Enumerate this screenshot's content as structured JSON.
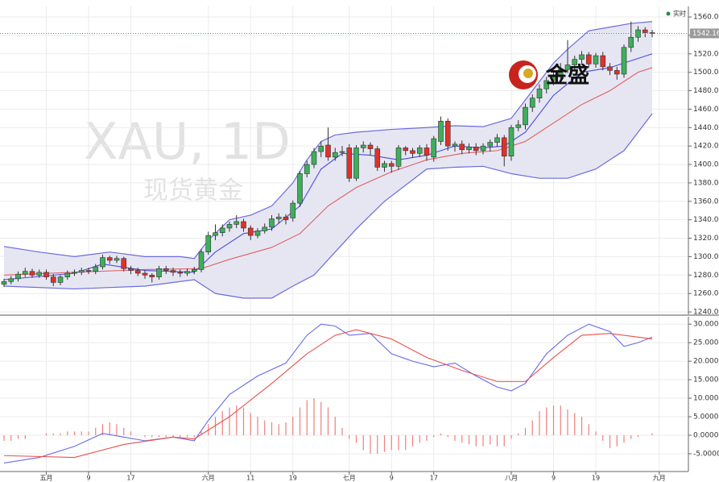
{
  "watermark": [
    "XAU, 1D",
    "现货黄金"
  ],
  "logo": "金盛",
  "legend_label": "实时",
  "chart_data": [
    {
      "type": "candlestick",
      "up_color": "#3fae5a",
      "down_color": "#e0312a",
      "grid": true,
      "ylim": [
        1237.4,
        1571.4
      ],
      "yticks": [
        {
          "value": 1240,
          "label": "1240.00"
        },
        {
          "value": 1260,
          "label": "1260.00"
        },
        {
          "value": 1280,
          "label": "1280.00"
        },
        {
          "value": 1300,
          "label": "1300.00"
        },
        {
          "value": 1320,
          "label": "1320.00"
        },
        {
          "value": 1340,
          "label": "1340.00"
        },
        {
          "value": 1360,
          "label": "1360.00"
        },
        {
          "value": 1380,
          "label": "1380.00"
        },
        {
          "value": 1400,
          "label": "1400.00"
        },
        {
          "value": 1420,
          "label": "1420.00"
        },
        {
          "value": 1440,
          "label": "1440.00"
        },
        {
          "value": 1460,
          "label": "1460.00"
        },
        {
          "value": 1480,
          "label": "1480.00"
        },
        {
          "value": 1500,
          "label": "1500.00"
        },
        {
          "value": 1520,
          "label": "1520.00"
        },
        {
          "value": 1540,
          "label": "1540.00"
        },
        {
          "value": 1560,
          "label": "1560.00"
        }
      ],
      "open": [
        1270,
        1273,
        1276,
        1281,
        1284,
        1280,
        1283,
        1278,
        1272,
        1278,
        1282,
        1283,
        1285,
        1284,
        1289,
        1299,
        1296,
        1298,
        1287,
        1285,
        1282,
        1280,
        1278,
        1287,
        1285,
        1283,
        1282,
        1284,
        1286,
        1305,
        1323,
        1326,
        1331,
        1335,
        1338,
        1331,
        1323,
        1328,
        1332,
        1341,
        1343,
        1342,
        1358,
        1390,
        1400,
        1414,
        1421,
        1408,
        1413,
        1418,
        1385,
        1418,
        1421,
        1417,
        1397,
        1401,
        1398,
        1418,
        1415,
        1412,
        1418,
        1408,
        1425,
        1447,
        1420,
        1422,
        1416,
        1419,
        1415,
        1420,
        1424,
        1429,
        1409,
        1440,
        1443,
        1462,
        1472,
        1482,
        1491,
        1497,
        1503,
        1508,
        1514,
        1519,
        1509,
        1518,
        1506,
        1502,
        1498,
        1527,
        1538,
        1546,
        1543,
        null
      ],
      "high": [
        1276,
        1279,
        1284,
        1288,
        1287,
        1286,
        1286,
        1281,
        1280,
        1285,
        1286,
        1288,
        1288,
        1292,
        1302,
        1301,
        1301,
        1300,
        1290,
        1288,
        1285,
        1282,
        1290,
        1290,
        1288,
        1286,
        1287,
        1289,
        1308,
        1327,
        1335,
        1335,
        1338,
        1345,
        1341,
        1334,
        1331,
        1336,
        1345,
        1347,
        1346,
        1361,
        1393,
        1404,
        1418,
        1425,
        1440,
        1418,
        1420,
        1422,
        1421,
        1425,
        1424,
        1420,
        1404,
        1404,
        1421,
        1420,
        1418,
        1421,
        1422,
        1431,
        1452,
        1450,
        1425,
        1426,
        1423,
        1423,
        1423,
        1427,
        1433,
        1432,
        1443,
        1448,
        1466,
        1476,
        1487,
        1495,
        1502,
        1510,
        1535,
        1518,
        1523,
        1522,
        1521,
        1522,
        1510,
        1506,
        1530,
        1555,
        1550,
        1549,
        1546,
        null
      ],
      "low": [
        1267,
        1270,
        1273,
        1278,
        1277,
        1277,
        1275,
        1268,
        1269,
        1275,
        1279,
        1280,
        1281,
        1281,
        1286,
        1292,
        1293,
        1284,
        1281,
        1279,
        1276,
        1272,
        1275,
        1281,
        1279,
        1278,
        1279,
        1281,
        1283,
        1302,
        1318,
        1322,
        1327,
        1331,
        1327,
        1318,
        1320,
        1325,
        1328,
        1336,
        1335,
        1338,
        1354,
        1386,
        1396,
        1408,
        1404,
        1404,
        1409,
        1381,
        1382,
        1413,
        1410,
        1393,
        1392,
        1391,
        1394,
        1410,
        1407,
        1408,
        1404,
        1403,
        1421,
        1415,
        1414,
        1411,
        1412,
        1410,
        1411,
        1414,
        1419,
        1398,
        1404,
        1436,
        1438,
        1457,
        1467,
        1477,
        1486,
        1493,
        1499,
        1503,
        1509,
        1505,
        1505,
        1502,
        1497,
        1492,
        1494,
        1522,
        1533,
        1538,
        1538,
        null
      ],
      "close": [
        1273,
        1276,
        1281,
        1284,
        1280,
        1283,
        1278,
        1272,
        1278,
        1282,
        1283,
        1285,
        1284,
        1289,
        1299,
        1296,
        1298,
        1287,
        1285,
        1282,
        1280,
        1278,
        1287,
        1285,
        1283,
        1282,
        1284,
        1286,
        1305,
        1323,
        1326,
        1331,
        1335,
        1338,
        1331,
        1323,
        1328,
        1332,
        1341,
        1343,
        1340,
        1358,
        1390,
        1400,
        1414,
        1420,
        1408,
        1413,
        1414,
        1385,
        1418,
        1421,
        1417,
        1397,
        1401,
        1398,
        1418,
        1415,
        1412,
        1418,
        1410,
        1428,
        1447,
        1420,
        1422,
        1416,
        1419,
        1415,
        1420,
        1424,
        1429,
        1409,
        1440,
        1443,
        1462,
        1472,
        1482,
        1491,
        1497,
        1503,
        1508,
        1514,
        1519,
        1509,
        1518,
        1506,
        1502,
        1498,
        1527,
        1538,
        1546,
        1543,
        1542.16,
        null
      ],
      "band": {
        "color": "#6b6bdb",
        "fill": "#e6e6f3",
        "upper": {
          "x": [
            0,
            5,
            10,
            15,
            20,
            25,
            27,
            29,
            32,
            35,
            38,
            41,
            43,
            45,
            47,
            50,
            55,
            60,
            64,
            68,
            72,
            75,
            78,
            80,
            83,
            86,
            89,
            92
          ],
          "values": [
            1311,
            1305,
            1300,
            1305,
            1300,
            1300,
            1298,
            1318,
            1340,
            1345,
            1355,
            1380,
            1405,
            1425,
            1432,
            1435,
            1438,
            1440,
            1442,
            1441,
            1450,
            1480,
            1510,
            1525,
            1545,
            1549,
            1553,
            1555
          ]
        },
        "lower": {
          "x": [
            0,
            10,
            20,
            27,
            30,
            34,
            38,
            41,
            44,
            47,
            50,
            54,
            60,
            64,
            68,
            72,
            76,
            80,
            84,
            88,
            92
          ],
          "values": [
            1268,
            1265,
            1268,
            1275,
            1260,
            1255,
            1255,
            1268,
            1280,
            1305,
            1330,
            1360,
            1395,
            1397,
            1398,
            1390,
            1385,
            1385,
            1395,
            1415,
            1455
          ]
        }
      },
      "lines": [
        {
          "color": "#e06060",
          "x": [
            0,
            10,
            20,
            28,
            32,
            38,
            42,
            46,
            50,
            55,
            60,
            65,
            70,
            74,
            78,
            82,
            86,
            90,
            92
          ],
          "values": [
            1280,
            1283,
            1286,
            1287,
            1297,
            1310,
            1325,
            1355,
            1375,
            1392,
            1405,
            1412,
            1415,
            1425,
            1445,
            1465,
            1480,
            1500,
            1505
          ]
        },
        {
          "color": "#4b4be0",
          "x": [
            0,
            10,
            14,
            20,
            27,
            30,
            34,
            38,
            42,
            45,
            48,
            52,
            56,
            60,
            64,
            68,
            71,
            74,
            78,
            82,
            86,
            90,
            92
          ],
          "values": [
            1275,
            1282,
            1292,
            1285,
            1283,
            1305,
            1325,
            1330,
            1355,
            1395,
            1412,
            1410,
            1405,
            1410,
            1420,
            1418,
            1420,
            1435,
            1475,
            1500,
            1505,
            1515,
            1520
          ]
        }
      ]
    },
    {
      "type": "macd",
      "grid": true,
      "ylim": [
        -9.8,
        32
      ],
      "yticks": [
        {
          "value": -5,
          "label": "-5.0000"
        },
        {
          "value": 0,
          "label": "0.0000"
        },
        {
          "value": 5,
          "label": "5.0000"
        },
        {
          "value": 10,
          "label": "10.0000"
        },
        {
          "value": 15,
          "label": "15.0000"
        },
        {
          "value": 20,
          "label": "20.0000"
        },
        {
          "value": 25,
          "label": "25.0000"
        },
        {
          "value": 30,
          "label": "30.0000"
        }
      ],
      "categories": [
        null,
        null,
        null,
        null,
        null,
        null,
        "五月",
        null,
        null,
        null,
        null,
        null,
        "9",
        null,
        null,
        null,
        null,
        null,
        "17",
        null,
        null,
        null,
        null,
        null,
        null,
        null,
        null,
        null,
        null,
        "六月",
        null,
        null,
        null,
        null,
        null,
        "11",
        null,
        null,
        null,
        null,
        null,
        "19",
        null,
        null,
        null,
        null,
        null,
        null,
        null,
        "七月",
        null,
        null,
        null,
        null,
        null,
        "9",
        null,
        null,
        null,
        null,
        null,
        "17",
        null,
        null,
        null,
        null,
        null,
        null,
        null,
        null,
        null,
        null,
        "八月",
        null,
        null,
        null,
        null,
        null,
        "9",
        null,
        null,
        null,
        null,
        null,
        "19",
        null,
        null,
        null,
        null,
        null,
        null,
        null,
        null,
        "九月"
      ],
      "histogram": {
        "color": "#f07d7d",
        "values": [
          -1.5,
          -1.5,
          -1,
          -1,
          0,
          0,
          0.5,
          0.5,
          0.5,
          1,
          1,
          1,
          1,
          2,
          3,
          3.5,
          3,
          2,
          1,
          0,
          -0.5,
          -0.5,
          -0.5,
          -0.5,
          -0.5,
          -0.5,
          -0.5,
          -0.5,
          1,
          3,
          5,
          6.5,
          7.5,
          8,
          7.5,
          6,
          5,
          4,
          3.5,
          3,
          3.5,
          5,
          7.5,
          9.5,
          10,
          9,
          7.5,
          5,
          2,
          -1,
          -2,
          -4,
          -5,
          -5,
          -4.5,
          -4,
          -4,
          -4,
          -3,
          -2,
          -1.5,
          -0.5,
          0.5,
          -0.5,
          -1.5,
          -2,
          -2.5,
          -3,
          -3,
          -2.5,
          -3,
          -3,
          -1,
          0.5,
          2,
          4,
          6.5,
          7.5,
          8,
          8,
          7,
          6,
          5,
          3,
          1,
          -1.5,
          -3.5,
          -3,
          -2,
          -1,
          -0.5,
          0,
          0.5,
          null
        ]
      },
      "lines": [
        {
          "color": "#6a6aea",
          "x": [
            0,
            5,
            10,
            14,
            17,
            20,
            24,
            27,
            29,
            32,
            36,
            40,
            43,
            45,
            47,
            49,
            52,
            55,
            58,
            61,
            64,
            67,
            70,
            72,
            74,
            77,
            80,
            83,
            86,
            88,
            90,
            92
          ],
          "values": [
            -7.5,
            -6,
            -3,
            0.5,
            -0.5,
            -1.5,
            -0.5,
            -1.5,
            4,
            11,
            16,
            19.5,
            27,
            30,
            29.5,
            27,
            27.5,
            22,
            20,
            18.5,
            19.5,
            16,
            13,
            12,
            14,
            22,
            27,
            30,
            28,
            24,
            25,
            26.5
          ]
        },
        {
          "color": "#e85050",
          "x": [
            0,
            10,
            17,
            24,
            27,
            32,
            38,
            43,
            47,
            50,
            55,
            60,
            65,
            70,
            74,
            78,
            82,
            86,
            92
          ],
          "values": [
            -5.5,
            -6,
            -2.5,
            -0.5,
            -1,
            5,
            14,
            22,
            27,
            28.5,
            26,
            21,
            17.5,
            14.5,
            14.5,
            21,
            27,
            27.5,
            26
          ]
        }
      ]
    }
  ]
}
